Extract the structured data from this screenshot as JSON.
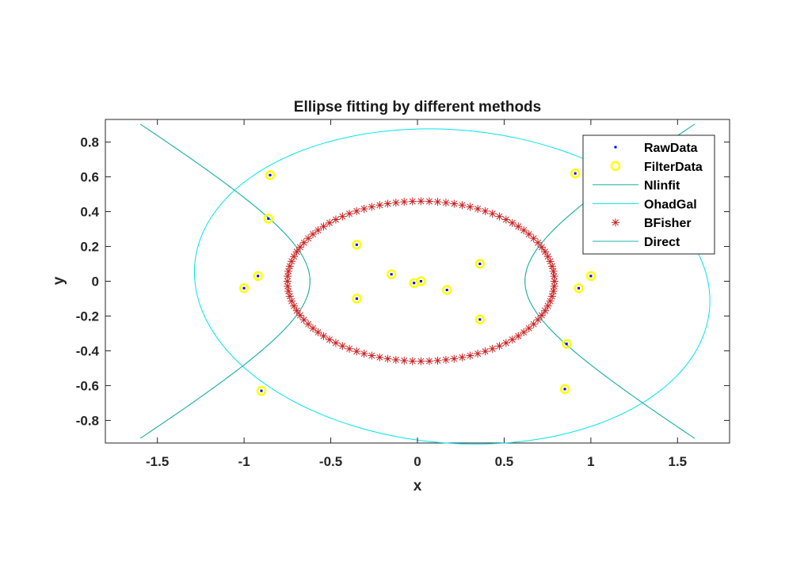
{
  "chart_data": {
    "type": "scatter",
    "title": "Ellipse fitting by different methods",
    "xlabel": "x",
    "ylabel": "y",
    "xlim": [
      -1.8,
      1.8
    ],
    "ylim": [
      -0.93,
      0.93
    ],
    "xticks": [
      -1.5,
      -1,
      -0.5,
      0,
      0.5,
      1,
      1.5
    ],
    "xtick_labels": [
      "-1.5",
      "-1",
      "-0.5",
      "0",
      "0.5",
      "1",
      "1.5"
    ],
    "yticks": [
      -0.8,
      -0.6,
      -0.4,
      -0.2,
      0,
      0.2,
      0.4,
      0.6,
      0.8
    ],
    "ytick_labels": [
      "-0.8",
      "-0.6",
      "-0.4",
      "-0.2",
      "0",
      "0.2",
      "0.4",
      "0.6",
      "0.8"
    ],
    "grid": false,
    "legend_position": "top-right",
    "colors": {
      "raw": "#0000ff",
      "filter": "#ffff00",
      "nlinfit": "#20b2aa",
      "ohadgal": "#00e5ee",
      "bfisher": "#cc2222",
      "direct": "#20b2aa",
      "axis": "#262626"
    },
    "points": [
      {
        "x": -0.85,
        "y": 0.61
      },
      {
        "x": -0.86,
        "y": 0.36
      },
      {
        "x": -0.92,
        "y": 0.03
      },
      {
        "x": -1.0,
        "y": -0.04
      },
      {
        "x": -0.35,
        "y": 0.21
      },
      {
        "x": -0.35,
        "y": -0.1
      },
      {
        "x": -0.15,
        "y": 0.04
      },
      {
        "x": -0.02,
        "y": -0.01
      },
      {
        "x": 0.02,
        "y": 0.0
      },
      {
        "x": 0.17,
        "y": -0.05
      },
      {
        "x": 0.36,
        "y": 0.1
      },
      {
        "x": 0.36,
        "y": -0.22
      },
      {
        "x": -0.9,
        "y": -0.63
      },
      {
        "x": 0.91,
        "y": 0.62
      },
      {
        "x": 1.0,
        "y": 0.03
      },
      {
        "x": 0.93,
        "y": -0.04
      },
      {
        "x": 0.86,
        "y": -0.36
      },
      {
        "x": 0.85,
        "y": -0.62
      }
    ],
    "series": [
      {
        "name": "RawData",
        "kind": "point"
      },
      {
        "name": "FilterData",
        "kind": "circle"
      },
      {
        "name": "Nlinfit",
        "kind": "hyperbola",
        "a": 0.62,
        "b": 0.38,
        "t_max": 1.6
      },
      {
        "name": "OhadGal",
        "kind": "ellipse",
        "cx": 0.2,
        "cy": -0.03,
        "rx": 1.49,
        "ry": 0.9,
        "rot_deg": -5
      },
      {
        "name": "BFisher",
        "kind": "ellipse-markers",
        "cx": 0.02,
        "cy": 0.0,
        "rx": 0.77,
        "ry": 0.46,
        "n": 100
      },
      {
        "name": "Direct",
        "kind": "hyperbola",
        "a": 0.62,
        "b": 0.38,
        "t_max": 1.6
      }
    ]
  }
}
